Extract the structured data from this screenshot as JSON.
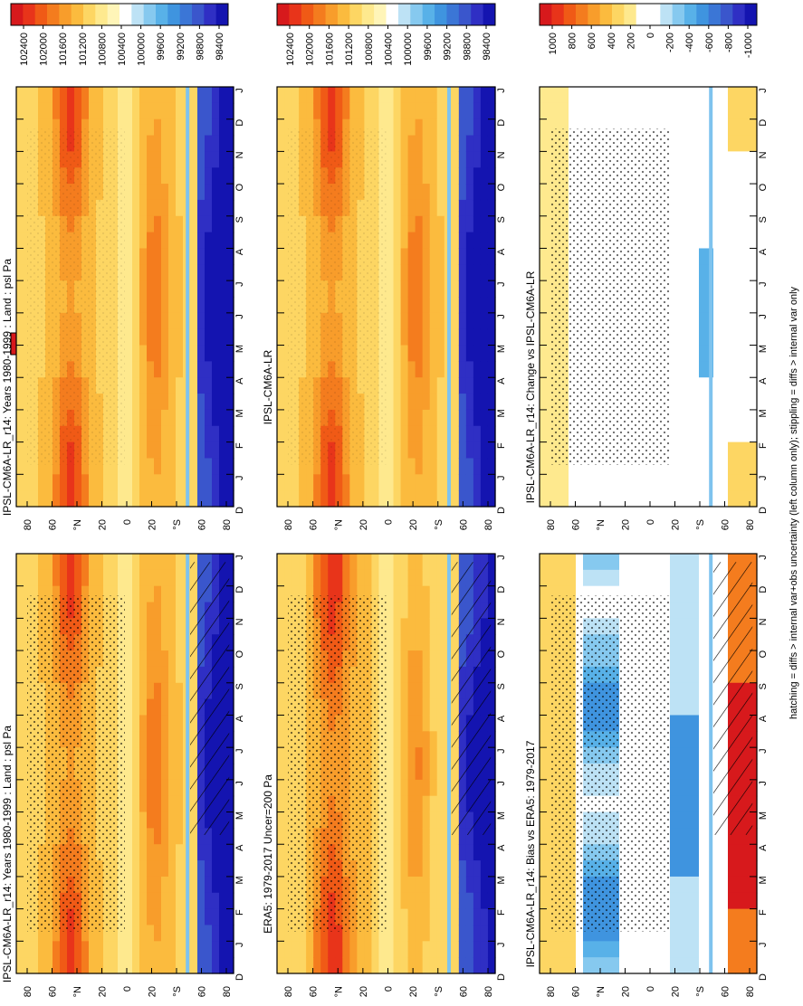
{
  "footer_note": "hatching = diffs > internal var+obs uncertainty (left column only); stippling = diffs > internal var only",
  "chart_data": [
    {
      "type": "heatmap",
      "title": "IPSL-CM6A-LR_r14: Years 1980-1999 : Land : psl Pa",
      "months": [
        "D",
        "J",
        "F",
        "M",
        "A",
        "M",
        "J",
        "J",
        "A",
        "S",
        "O",
        "N",
        "D",
        "J"
      ],
      "lat_ticks": [
        "80",
        "60",
        "°N",
        "20",
        "0",
        "20",
        "°S",
        "60",
        "80"
      ],
      "colorbar": {
        "labels": [
          "102400",
          "102000",
          "101600",
          "101200",
          "100800",
          "100400",
          "100000",
          "99600",
          "99200",
          "98800",
          "98400"
        ],
        "colors": [
          "#d7191c",
          "#e8341a",
          "#f05a16",
          "#f47c1e",
          "#f89d2b",
          "#fbbb3e",
          "#fdd663",
          "#fee98e",
          "#fff5b8",
          "#ffffff",
          "#bde2f5",
          "#86c9ef",
          "#58b1e8",
          "#3f94df",
          "#3b76d6",
          "#3a56cc",
          "#2f2fc4",
          "#1414b0"
        ]
      },
      "stippled": true,
      "hatched": true
    },
    {
      "type": "heatmap",
      "title": "IPSL-CM6A-LR_r14: Years 1980-1999 : Land : psl Pa",
      "months": [
        "D",
        "J",
        "F",
        "M",
        "A",
        "M",
        "J",
        "J",
        "A",
        "S",
        "O",
        "N",
        "D",
        "J"
      ],
      "lat_ticks": [
        "80",
        "60",
        "°N",
        "20",
        "0",
        "20",
        "°S",
        "60",
        "80"
      ],
      "colorbar": {
        "labels": [
          "102400",
          "102000",
          "101600",
          "101200",
          "100800",
          "100400",
          "100000",
          "99600",
          "99200",
          "98800",
          "98400"
        ],
        "colors": [
          "#d7191c",
          "#e8341a",
          "#f05a16",
          "#f47c1e",
          "#f89d2b",
          "#fbbb3e",
          "#fdd663",
          "#fee98e",
          "#fff5b8",
          "#ffffff",
          "#bde2f5",
          "#86c9ef",
          "#58b1e8",
          "#3f94df",
          "#3b76d6",
          "#3a56cc",
          "#2f2fc4",
          "#1414b0"
        ]
      },
      "stippled": true,
      "hatched": false
    },
    {
      "type": "heatmap",
      "title": "ERA5: 1979-2017 Uncer=200 Pa",
      "months": [
        "D",
        "J",
        "F",
        "M",
        "A",
        "M",
        "J",
        "J",
        "A",
        "S",
        "O",
        "N",
        "D",
        "J"
      ],
      "lat_ticks": [
        "80",
        "60",
        "°N",
        "20",
        "0",
        "20",
        "°S",
        "60",
        "80"
      ],
      "colorbar": {
        "labels": [
          "102400",
          "102000",
          "101600",
          "101200",
          "100800",
          "100400",
          "100000",
          "99600",
          "99200",
          "98800",
          "98400"
        ],
        "colors": [
          "#d7191c",
          "#e8341a",
          "#f05a16",
          "#f47c1e",
          "#f89d2b",
          "#fbbb3e",
          "#fdd663",
          "#fee98e",
          "#fff5b8",
          "#ffffff",
          "#bde2f5",
          "#86c9ef",
          "#58b1e8",
          "#3f94df",
          "#3b76d6",
          "#3a56cc",
          "#2f2fc4",
          "#1414b0"
        ]
      },
      "stippled": true,
      "hatched": true
    },
    {
      "type": "heatmap",
      "title": "IPSL-CM6A-LR",
      "months": [
        "D",
        "J",
        "F",
        "M",
        "A",
        "M",
        "J",
        "J",
        "A",
        "S",
        "O",
        "N",
        "D",
        "J"
      ],
      "lat_ticks": [
        "80",
        "60",
        "°N",
        "20",
        "0",
        "20",
        "°S",
        "60",
        "80"
      ],
      "colorbar": {
        "labels": [
          "102400",
          "102000",
          "101600",
          "101200",
          "100800",
          "100400",
          "100000",
          "99600",
          "99200",
          "98800",
          "98400"
        ],
        "colors": [
          "#d7191c",
          "#e8341a",
          "#f05a16",
          "#f47c1e",
          "#f89d2b",
          "#fbbb3e",
          "#fdd663",
          "#fee98e",
          "#fff5b8",
          "#ffffff",
          "#bde2f5",
          "#86c9ef",
          "#58b1e8",
          "#3f94df",
          "#3b76d6",
          "#3a56cc",
          "#2f2fc4",
          "#1414b0"
        ]
      },
      "stippled": true,
      "hatched": false
    },
    {
      "type": "heatmap",
      "title": "IPSL-CM6A-LR_r14: Bias vs ERA5: 1979-2017",
      "months": [
        "D",
        "J",
        "F",
        "M",
        "A",
        "M",
        "J",
        "J",
        "A",
        "S",
        "O",
        "N",
        "D",
        "J"
      ],
      "lat_ticks": [
        "80",
        "60",
        "°N",
        "20",
        "0",
        "20",
        "°S",
        "60",
        "80"
      ],
      "colorbar": {
        "labels": [
          "1000",
          "800",
          "600",
          "400",
          "200",
          "0",
          "-200",
          "-400",
          "-600",
          "-800",
          "-1000"
        ],
        "colors": [
          "#d7191c",
          "#e8341a",
          "#f05a16",
          "#f47c1e",
          "#f89d2b",
          "#fbbb3e",
          "#fdd663",
          "#fee98e",
          "#ffffff",
          "#ffffff",
          "#bde2f5",
          "#86c9ef",
          "#58b1e8",
          "#3f94df",
          "#3b76d6",
          "#3a56cc",
          "#2f2fc4",
          "#1414b0"
        ]
      },
      "stippled": true,
      "hatched": true
    },
    {
      "type": "heatmap",
      "title": "IPSL-CM6A-LR_r14: Change vs IPSL-CM6A-LR",
      "months": [
        "D",
        "J",
        "F",
        "M",
        "A",
        "M",
        "J",
        "J",
        "A",
        "S",
        "O",
        "N",
        "D",
        "J"
      ],
      "lat_ticks": [
        "80",
        "60",
        "°N",
        "20",
        "0",
        "20",
        "°S",
        "60",
        "80"
      ],
      "colorbar": {
        "labels": [
          "1000",
          "800",
          "600",
          "400",
          "200",
          "0",
          "-200",
          "-400",
          "-600",
          "-800",
          "-1000"
        ],
        "colors": [
          "#d7191c",
          "#e8341a",
          "#f05a16",
          "#f47c1e",
          "#f89d2b",
          "#fbbb3e",
          "#fdd663",
          "#fee98e",
          "#ffffff",
          "#ffffff",
          "#bde2f5",
          "#86c9ef",
          "#58b1e8",
          "#3f94df",
          "#3b76d6",
          "#3a56cc",
          "#2f2fc4",
          "#1414b0"
        ]
      },
      "stippled": true,
      "hatched": false
    }
  ]
}
